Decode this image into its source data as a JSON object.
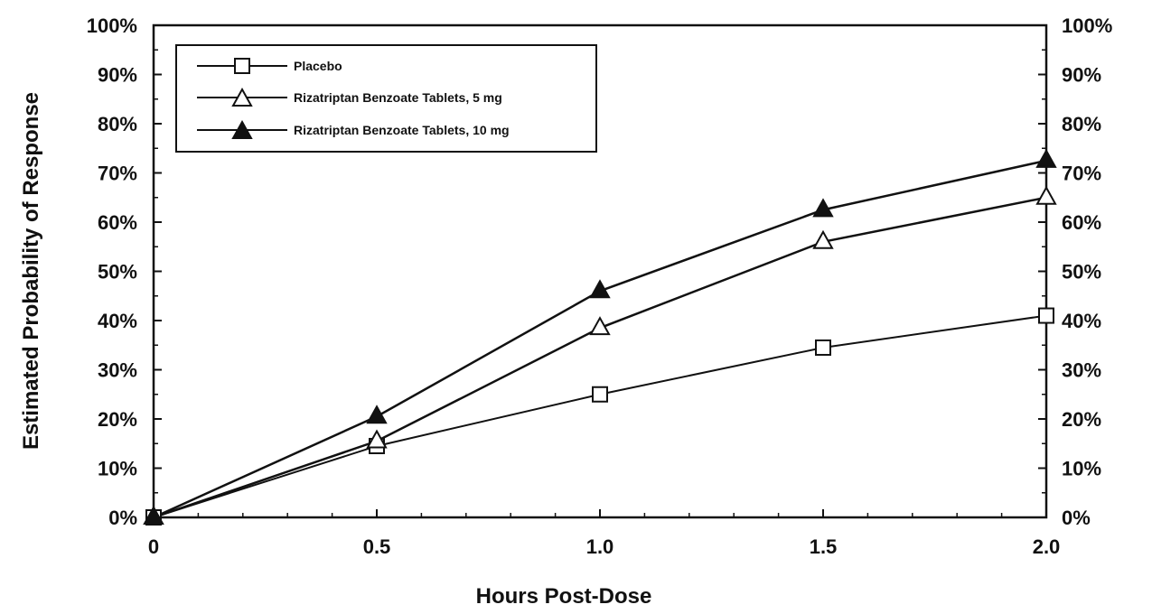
{
  "chart_data": {
    "type": "line",
    "title": "",
    "xlabel": "Hours Post-Dose",
    "ylabel": "Estimated Probability of Response",
    "x": [
      0,
      0.5,
      1.0,
      1.5,
      2.0
    ],
    "x_tick_labels": [
      "0",
      "0.5",
      "1.0",
      "1.5",
      "2.0"
    ],
    "xlim": [
      0,
      2.0
    ],
    "ylim": [
      0,
      100
    ],
    "y_tick_values": [
      0,
      10,
      20,
      30,
      40,
      50,
      60,
      70,
      80,
      90,
      100
    ],
    "y_tick_labels": [
      "0%",
      "10%",
      "20%",
      "30%",
      "40%",
      "50%",
      "60%",
      "70%",
      "80%",
      "90%",
      "100%"
    ],
    "right_axis_mirrored": true,
    "grid": false,
    "legend_position": "top-left",
    "series": [
      {
        "name": "Placebo",
        "marker": "open-square",
        "values": [
          0,
          14.5,
          25,
          34.5,
          41
        ]
      },
      {
        "name": "Rizatriptan Benzoate Tablets, 5 mg",
        "marker": "open-triangle",
        "values": [
          0,
          15.5,
          38.5,
          56,
          65
        ]
      },
      {
        "name": "Rizatriptan Benzoate Tablets, 10 mg",
        "marker": "filled-triangle",
        "values": [
          0,
          20.5,
          46,
          62.5,
          72.5
        ]
      }
    ],
    "colors": {
      "line": "#111111",
      "background": "#ffffff"
    }
  }
}
